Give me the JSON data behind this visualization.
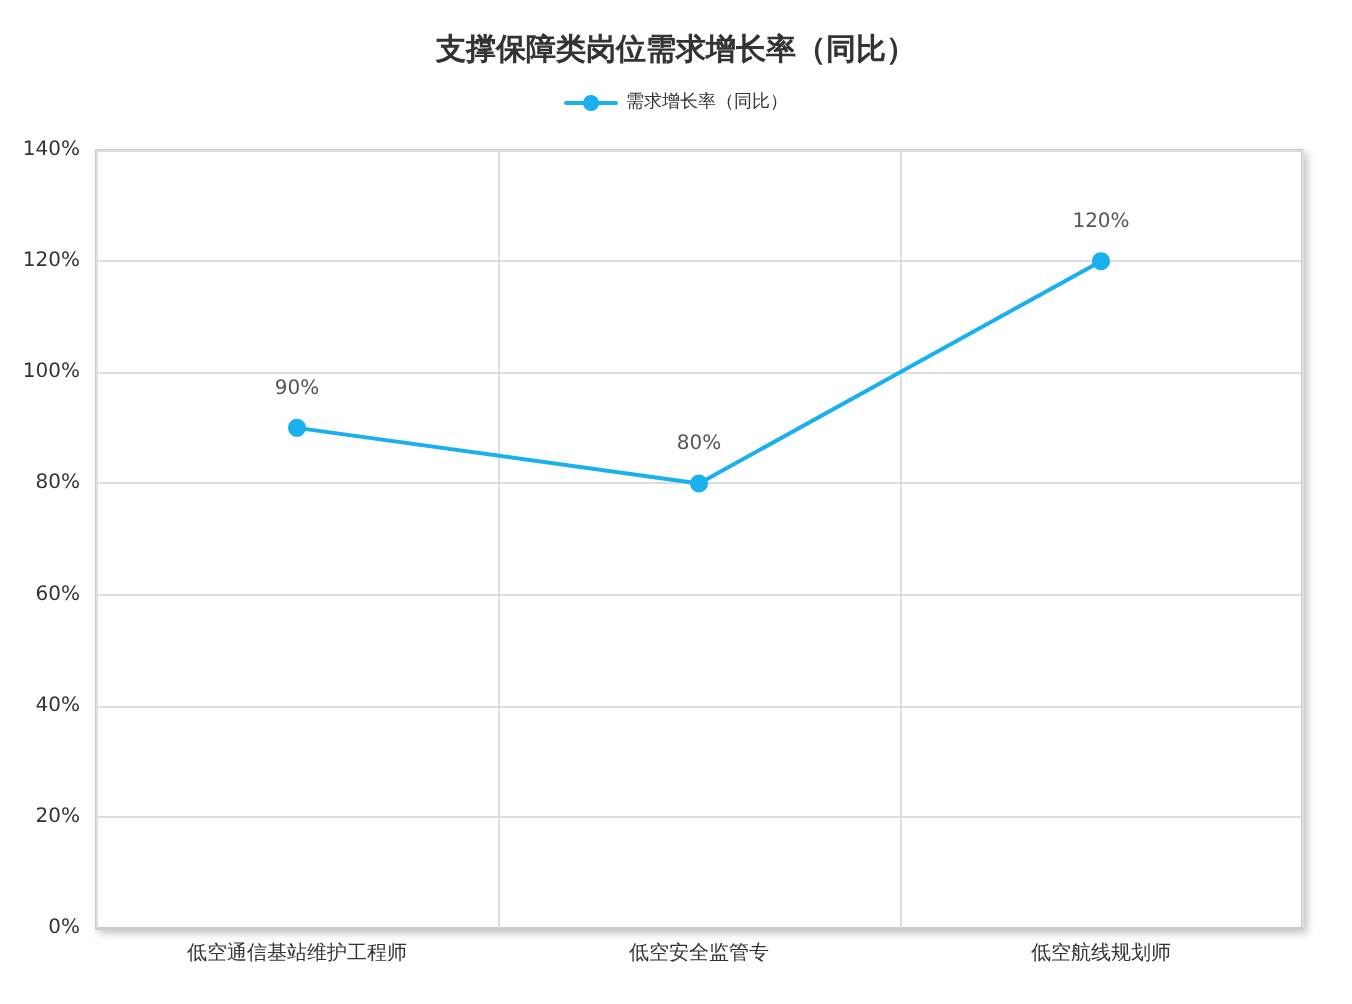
{
  "chart_data": {
    "type": "line",
    "title": "支撑保障类岗位需求增长率（同比）",
    "categories": [
      "低空通信基站维护工程师",
      "低空安全监管专",
      "低空航线规划师"
    ],
    "series": [
      {
        "name": "需求增长率（同比）",
        "color": "#1ab0ee",
        "values": [
          90,
          80,
          120
        ],
        "value_labels": [
          "90%",
          "80%",
          "120%"
        ]
      }
    ],
    "ylim": [
      0,
      140
    ],
    "yticks": [
      {
        "value": 0,
        "label": "0%"
      },
      {
        "value": 20,
        "label": "20%"
      },
      {
        "value": 40,
        "label": "40%"
      },
      {
        "value": 60,
        "label": "60%"
      },
      {
        "value": 80,
        "label": "80%"
      },
      {
        "value": 100,
        "label": "100%"
      },
      {
        "value": 120,
        "label": "120%"
      },
      {
        "value": 140,
        "label": "140%"
      }
    ],
    "grid": true,
    "legend": "top",
    "marker": "circle",
    "line_style": "solid"
  }
}
